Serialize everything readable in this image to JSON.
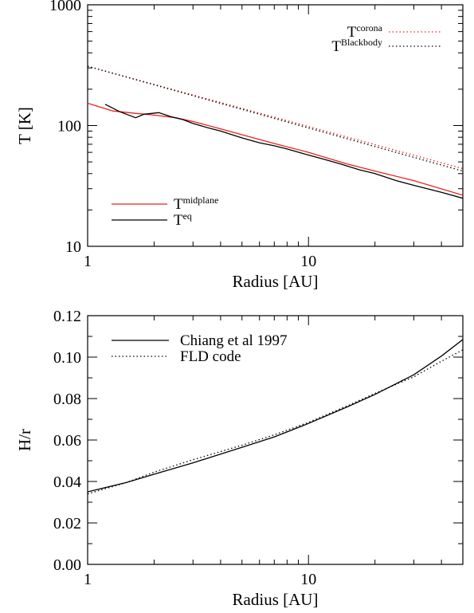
{
  "chart_data": [
    {
      "type": "line",
      "xscale": "log",
      "yscale": "log",
      "xlim": [
        1,
        50
      ],
      "ylim": [
        10,
        1000
      ],
      "xlabel": "Radius [AU]",
      "ylabel": "T [K]",
      "x_ticks": [
        "1",
        "10"
      ],
      "y_ticks": [
        "10",
        "100",
        "1000"
      ],
      "series": [
        {
          "name_main": "T",
          "name_sub": "corona",
          "style": "dotted",
          "color": "#e8231e",
          "x": [
            1,
            50
          ],
          "y": [
            310,
            44
          ]
        },
        {
          "name_main": "T",
          "name_sub": "Blackbody",
          "style": "dotted",
          "color": "#000000",
          "x": [
            1,
            50
          ],
          "y": [
            310,
            42
          ]
        },
        {
          "name_main": "T",
          "name_sub": "midplane",
          "style": "solid",
          "color": "#e8231e",
          "x": [
            1,
            1.3,
            1.6,
            2,
            2.5,
            3,
            4,
            5,
            7,
            10,
            15,
            20,
            30,
            50
          ],
          "y": [
            153,
            132,
            127,
            122,
            116,
            108,
            94,
            84,
            71,
            60,
            48,
            42,
            35,
            26.5
          ]
        },
        {
          "name_main": "T",
          "name_sub": "eq",
          "style": "solid",
          "color": "#000000",
          "x": [
            1.2,
            1.4,
            1.65,
            1.8,
            2.1,
            2.4,
            2.7,
            3,
            3.5,
            4,
            5,
            6,
            7,
            8,
            10,
            12,
            14,
            17,
            20,
            25,
            30,
            40,
            50
          ],
          "y": [
            150,
            130,
            116,
            124,
            128,
            118,
            112,
            104,
            96,
            90,
            79,
            72,
            68,
            64,
            57,
            52,
            48,
            43,
            40,
            35,
            32,
            28,
            25
          ]
        }
      ],
      "legend": [
        "top-right",
        "bottom-left"
      ],
      "grid": false
    },
    {
      "type": "line",
      "xscale": "log",
      "yscale": "linear",
      "xlim": [
        1,
        50
      ],
      "ylim": [
        0,
        0.12
      ],
      "xlabel": "Radius [AU]",
      "ylabel": "H/r",
      "x_ticks": [
        "1",
        "10"
      ],
      "y_ticks": [
        "0.00",
        "0.02",
        "0.04",
        "0.06",
        "0.08",
        "0.10",
        "0.12"
      ],
      "series": [
        {
          "name": "Chiang et al 1997",
          "style": "solid",
          "color": "#000000",
          "x": [
            1,
            1.5,
            2,
            3,
            5,
            7,
            10,
            15,
            20,
            30,
            40,
            50
          ],
          "y": [
            0.035,
            0.0395,
            0.0435,
            0.049,
            0.0565,
            0.0615,
            0.068,
            0.076,
            0.082,
            0.0915,
            0.1005,
            0.1085
          ]
        },
        {
          "name": "FLD code",
          "style": "dotted",
          "color": "#000000",
          "x": [
            1,
            1.5,
            2,
            3,
            5,
            7,
            10,
            15,
            20,
            30,
            40,
            50
          ],
          "y": [
            0.034,
            0.0395,
            0.0445,
            0.0505,
            0.0575,
            0.0625,
            0.0685,
            0.0765,
            0.0825,
            0.0905,
            0.098,
            0.1035
          ]
        }
      ],
      "legend": "top-left",
      "grid": false
    }
  ]
}
